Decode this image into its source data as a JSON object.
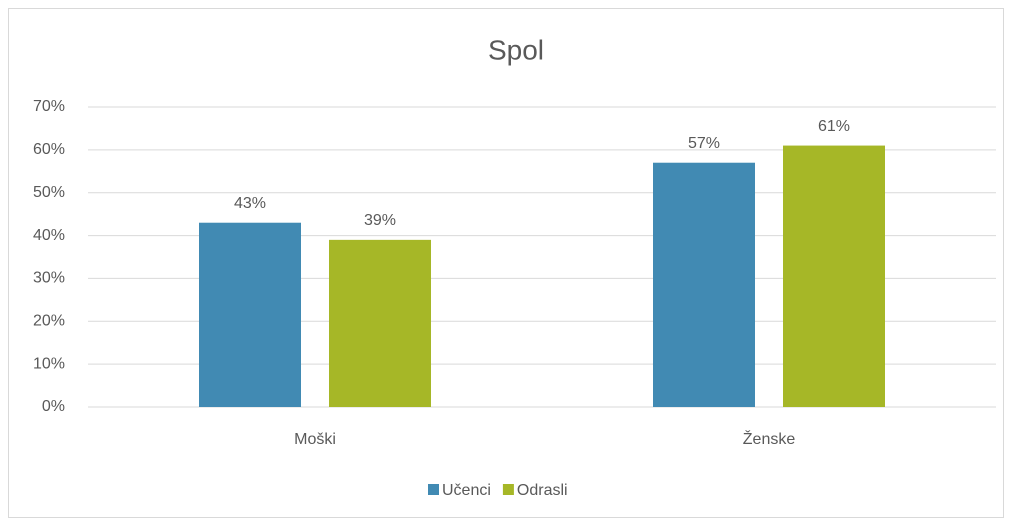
{
  "chart_data": {
    "type": "bar",
    "title": "Spol",
    "categories": [
      "Moški",
      "Ženske"
    ],
    "series": [
      {
        "name": "Učenci",
        "color": "#418ab3",
        "values": [
          43,
          57
        ],
        "value_labels": [
          "43%",
          "57%"
        ]
      },
      {
        "name": "Odrasli",
        "color": "#a6b727",
        "values": [
          39,
          61
        ],
        "value_labels": [
          "39%",
          "61%"
        ]
      }
    ],
    "ylim": [
      0,
      70
    ],
    "yticks": [
      {
        "value": 0,
        "label": "0%"
      },
      {
        "value": 10,
        "label": "10%"
      },
      {
        "value": 20,
        "label": "20%"
      },
      {
        "value": 30,
        "label": "30%"
      },
      {
        "value": 40,
        "label": "40%"
      },
      {
        "value": 50,
        "label": "50%"
      },
      {
        "value": 60,
        "label": "60%"
      },
      {
        "value": 70,
        "label": "70%"
      }
    ],
    "grid": true,
    "legend": "bottom"
  }
}
